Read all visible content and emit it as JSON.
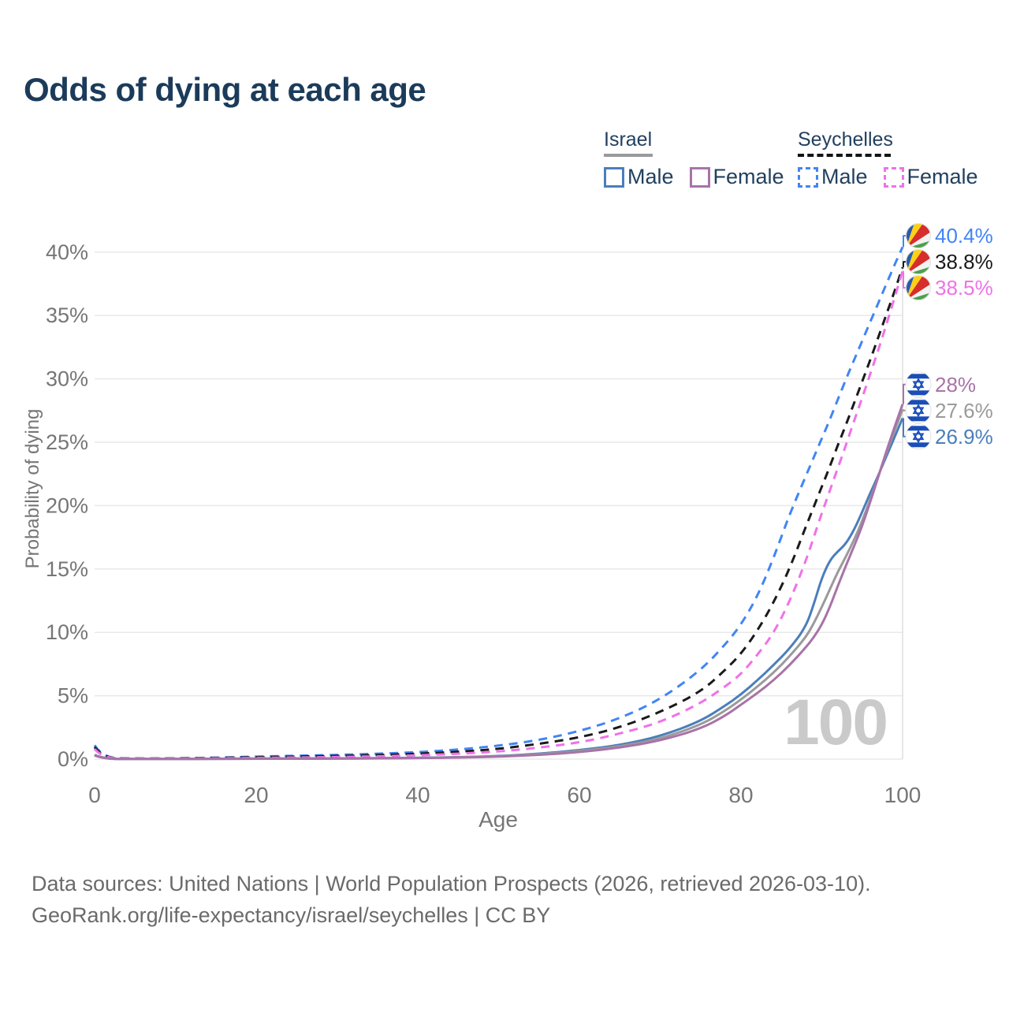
{
  "title": "Odds of dying at each age",
  "legend": {
    "groups": [
      {
        "country": "Israel",
        "line_style": "solid",
        "underline_color": "#9a9a9a",
        "items": [
          {
            "label": "Male",
            "color": "#4a7ebc",
            "dashed": false
          },
          {
            "label": "Female",
            "color": "#a873a8",
            "dashed": false
          }
        ]
      },
      {
        "country": "Seychelles",
        "line_style": "dashed",
        "underline_color": "#141414",
        "items": [
          {
            "label": "Male",
            "color": "#4285f4",
            "dashed": true
          },
          {
            "label": "Female",
            "color": "#ef72e7",
            "dashed": true
          }
        ]
      }
    ]
  },
  "footer": {
    "line1": "Data sources: United Nations | World Population Prospects (2026, retrieved 2026-03-10).",
    "line2": "GeoRank.org/life-expectancy/israel/seychelles | CC BY"
  },
  "chart_data": {
    "type": "line",
    "xlabel": "Age",
    "ylabel": "Probability of dying",
    "xlim": [
      0,
      100
    ],
    "ylim_percent": [
      0,
      42
    ],
    "grid": "horizontal-only",
    "x_ticks": [
      {
        "label": "0",
        "value": 0
      },
      {
        "label": "20",
        "value": 20
      },
      {
        "label": "40",
        "value": 40
      },
      {
        "label": "60",
        "value": 60
      },
      {
        "label": "80",
        "value": 80
      },
      {
        "label": "100",
        "value": 100
      }
    ],
    "y_ticks": [
      {
        "label": "0%",
        "value": 0
      },
      {
        "label": "5%",
        "value": 5
      },
      {
        "label": "10%",
        "value": 10
      },
      {
        "label": "15%",
        "value": 15
      },
      {
        "label": "20%",
        "value": 20
      },
      {
        "label": "25%",
        "value": 25
      },
      {
        "label": "30%",
        "value": 30
      },
      {
        "label": "35%",
        "value": 35
      },
      {
        "label": "40%",
        "value": 40
      }
    ],
    "age_cursor": {
      "label": "100",
      "value": 100
    },
    "ages": [
      0,
      1,
      5,
      10,
      15,
      20,
      25,
      30,
      35,
      40,
      45,
      50,
      55,
      60,
      65,
      70,
      75,
      78,
      80,
      82,
      84,
      86,
      88,
      89,
      90,
      91,
      92,
      93,
      94,
      95,
      96,
      97,
      98,
      99,
      100
    ],
    "series": [
      {
        "id": "seychelles-male",
        "country": "Seychelles",
        "sex": "Male",
        "color": "#4285f4",
        "dashed": true,
        "flag": "seychelles",
        "end_label": "40.4%",
        "values_percent": [
          1.1,
          0.09,
          0.05,
          0.06,
          0.12,
          0.2,
          0.27,
          0.33,
          0.42,
          0.55,
          0.75,
          1.05,
          1.5,
          2.2,
          3.2,
          4.7,
          7.0,
          9.0,
          10.6,
          12.8,
          15.8,
          19.3,
          22.3,
          23.8,
          25.3,
          26.8,
          28.4,
          30.0,
          31.5,
          33.0,
          34.5,
          36.0,
          37.5,
          39.0,
          40.4
        ]
      },
      {
        "id": "seychelles-both",
        "country": "Seychelles",
        "sex": "Both sexes",
        "color": "#1a1a1a",
        "dashed": true,
        "flag": "seychelles",
        "end_label": "38.8%",
        "values_percent": [
          0.95,
          0.08,
          0.04,
          0.05,
          0.1,
          0.15,
          0.2,
          0.25,
          0.32,
          0.42,
          0.58,
          0.8,
          1.2,
          1.7,
          2.5,
          3.7,
          5.3,
          7.0,
          8.3,
          10.1,
          12.3,
          15.0,
          18.3,
          19.9,
          21.5,
          23.1,
          24.8,
          26.4,
          28.1,
          29.8,
          31.5,
          33.3,
          35.1,
          36.9,
          38.8
        ]
      },
      {
        "id": "seychelles-female",
        "country": "Seychelles",
        "sex": "Female",
        "color": "#ef72e7",
        "dashed": true,
        "flag": "seychelles",
        "end_label": "38.5%",
        "values_percent": [
          0.8,
          0.07,
          0.04,
          0.04,
          0.07,
          0.1,
          0.13,
          0.17,
          0.22,
          0.3,
          0.42,
          0.6,
          0.9,
          1.3,
          2.0,
          2.9,
          4.4,
          5.7,
          6.7,
          8.2,
          9.9,
          12.4,
          15.6,
          17.5,
          19.4,
          21.2,
          23.0,
          24.8,
          26.7,
          28.5,
          30.4,
          32.3,
          34.3,
          36.4,
          38.5
        ]
      },
      {
        "id": "israel-male",
        "country": "Israel",
        "sex": "Male",
        "color": "#4a7ebc",
        "dashed": false,
        "flag": "israel",
        "end_label": "26.9%",
        "values_percent": [
          0.35,
          0.02,
          0.01,
          0.01,
          0.03,
          0.05,
          0.05,
          0.06,
          0.08,
          0.1,
          0.15,
          0.24,
          0.42,
          0.7,
          1.1,
          1.8,
          3.0,
          4.2,
          5.1,
          6.2,
          7.4,
          8.7,
          10.4,
          12.2,
          14.3,
          15.7,
          16.4,
          17.0,
          18.1,
          19.5,
          21.0,
          22.4,
          23.9,
          25.4,
          26.9
        ]
      },
      {
        "id": "israel-both",
        "country": "Israel",
        "sex": "Both sexes",
        "color": "#9a9a9a",
        "dashed": false,
        "flag": "israel",
        "end_label": "27.6%",
        "values_percent": [
          0.33,
          0.02,
          0.01,
          0.01,
          0.02,
          0.04,
          0.04,
          0.05,
          0.07,
          0.09,
          0.14,
          0.22,
          0.38,
          0.63,
          1.0,
          1.6,
          2.7,
          3.8,
          4.7,
          5.7,
          6.8,
          8.1,
          9.6,
          10.7,
          12.0,
          13.4,
          14.8,
          16.0,
          17.3,
          18.8,
          20.5,
          22.3,
          24.2,
          25.9,
          27.6
        ]
      },
      {
        "id": "israel-female",
        "country": "Israel",
        "sex": "Female",
        "color": "#a873a8",
        "dashed": false,
        "flag": "israel",
        "end_label": "28%",
        "values_percent": [
          0.3,
          0.02,
          0.01,
          0.01,
          0.02,
          0.03,
          0.03,
          0.04,
          0.06,
          0.08,
          0.12,
          0.19,
          0.33,
          0.55,
          0.9,
          1.45,
          2.4,
          3.4,
          4.3,
          5.2,
          6.2,
          7.4,
          8.8,
          9.6,
          10.6,
          12.0,
          13.7,
          15.3,
          16.8,
          18.4,
          20.3,
          22.3,
          24.3,
          26.2,
          28.0
        ]
      }
    ]
  }
}
